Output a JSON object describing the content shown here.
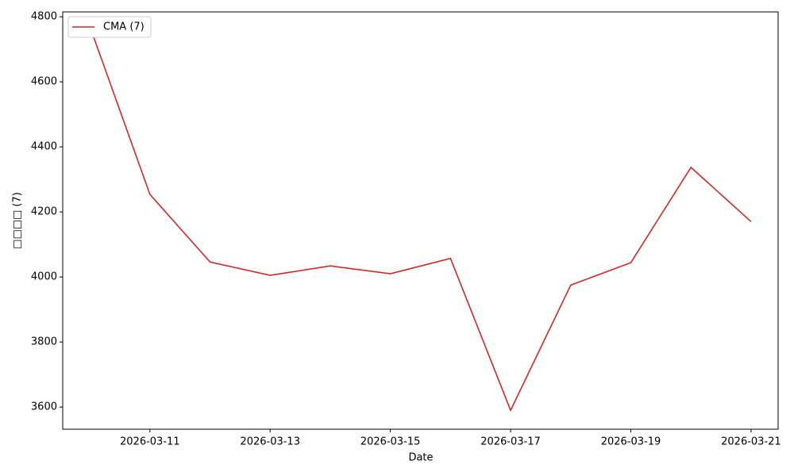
{
  "chart_data": {
    "type": "line",
    "xlabel": "Date",
    "ylabel": "□□□□ (7)",
    "x": [
      "2026-03-10",
      "2026-03-11",
      "2026-03-12",
      "2026-03-13",
      "2026-03-14",
      "2026-03-15",
      "2026-03-16",
      "2026-03-17",
      "2026-03-18",
      "2026-03-19",
      "2026-03-20",
      "2026-03-21"
    ],
    "series": [
      {
        "name": "CMA (7)",
        "color": "#d62728",
        "values": [
          4771,
          4254,
          4046,
          4005,
          4034,
          4010,
          4057,
          3590,
          3975,
          4044,
          4337,
          4170
        ]
      }
    ],
    "xlim": [
      "2026-03-09T13:12",
      "2026-03-21T10:48"
    ],
    "xticks": [
      "2026-03-11",
      "2026-03-13",
      "2026-03-15",
      "2026-03-17",
      "2026-03-19",
      "2026-03-21"
    ],
    "ylim": [
      3532,
      4815
    ],
    "yticks": [
      3600,
      3800,
      4000,
      4200,
      4400,
      4600,
      4800
    ],
    "grid": false,
    "legend": "upper left"
  }
}
